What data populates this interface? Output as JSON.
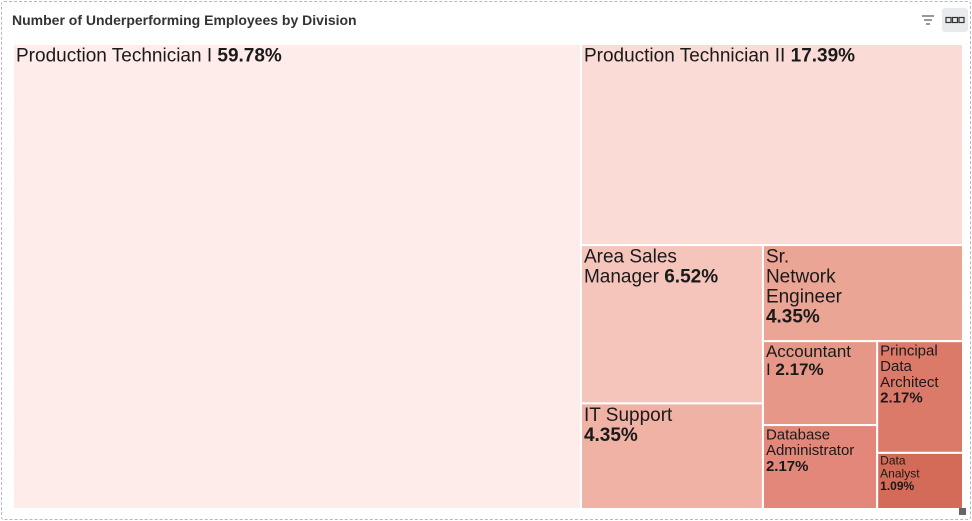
{
  "title": "Number of Underperforming Employees by Division",
  "toolbar": {
    "filter_icon": "filter-lines-icon",
    "more_icon": "more-dots-icon"
  },
  "chart_data": {
    "type": "treemap",
    "items": [
      {
        "name": "Production Technician I",
        "value": 59.78,
        "label_pct": "59.78%",
        "color": "#fdecea",
        "lines": [
          [
            "Production Technician I ",
            "59.78%"
          ]
        ],
        "fs": 19
      },
      {
        "name": "Production Technician II",
        "value": 17.39,
        "label_pct": "17.39%",
        "color": "#fadbd5",
        "lines": [
          [
            "Production Technician II ",
            "17.39%"
          ]
        ],
        "fs": 19
      },
      {
        "name": "Area Sales Manager",
        "value": 6.52,
        "label_pct": "6.52%",
        "color": "#f5c5bb",
        "lines": [
          [
            "Area Sales",
            ""
          ],
          [
            "Manager ",
            "6.52%"
          ]
        ],
        "fs": 19
      },
      {
        "name": "IT Support",
        "value": 4.35,
        "label_pct": "4.35%",
        "color": "#f0b2a4",
        "lines": [
          [
            "IT Support",
            ""
          ],
          [
            "",
            "4.35%"
          ]
        ],
        "fs": 19
      },
      {
        "name": "Sr. Network Engineer",
        "value": 4.35,
        "label_pct": "4.35%",
        "color": "#eba595",
        "lines": [
          [
            "Sr.",
            ""
          ],
          [
            "Network",
            ""
          ],
          [
            "Engineer",
            ""
          ],
          [
            "",
            "4.35%"
          ]
        ],
        "fs": 19
      },
      {
        "name": "Accountant I",
        "value": 2.17,
        "label_pct": "2.17%",
        "color": "#e69787",
        "lines": [
          [
            "Accountant",
            ""
          ],
          [
            "I ",
            "2.17%"
          ]
        ],
        "fs": 17
      },
      {
        "name": "Database Administrator",
        "value": 2.17,
        "label_pct": "2.17%",
        "color": "#e3877a",
        "lines": [
          [
            "Database",
            ""
          ],
          [
            "Administrator",
            ""
          ],
          [
            "",
            "2.17%"
          ]
        ],
        "fs": 15
      },
      {
        "name": "Principal Data Architect",
        "value": 2.17,
        "label_pct": "2.17%",
        "color": "#dc7a6a",
        "lines": [
          [
            "Principal",
            ""
          ],
          [
            "Data",
            ""
          ],
          [
            "Architect",
            ""
          ],
          [
            "",
            "2.17%"
          ]
        ],
        "fs": 15
      },
      {
        "name": "Data Analyst",
        "value": 1.09,
        "label_pct": "1.09%",
        "color": "#d46a58",
        "lines": [
          [
            "Data",
            ""
          ],
          [
            "Analyst",
            ""
          ],
          [
            "",
            "1.09%"
          ]
        ],
        "fs": 12
      }
    ]
  }
}
